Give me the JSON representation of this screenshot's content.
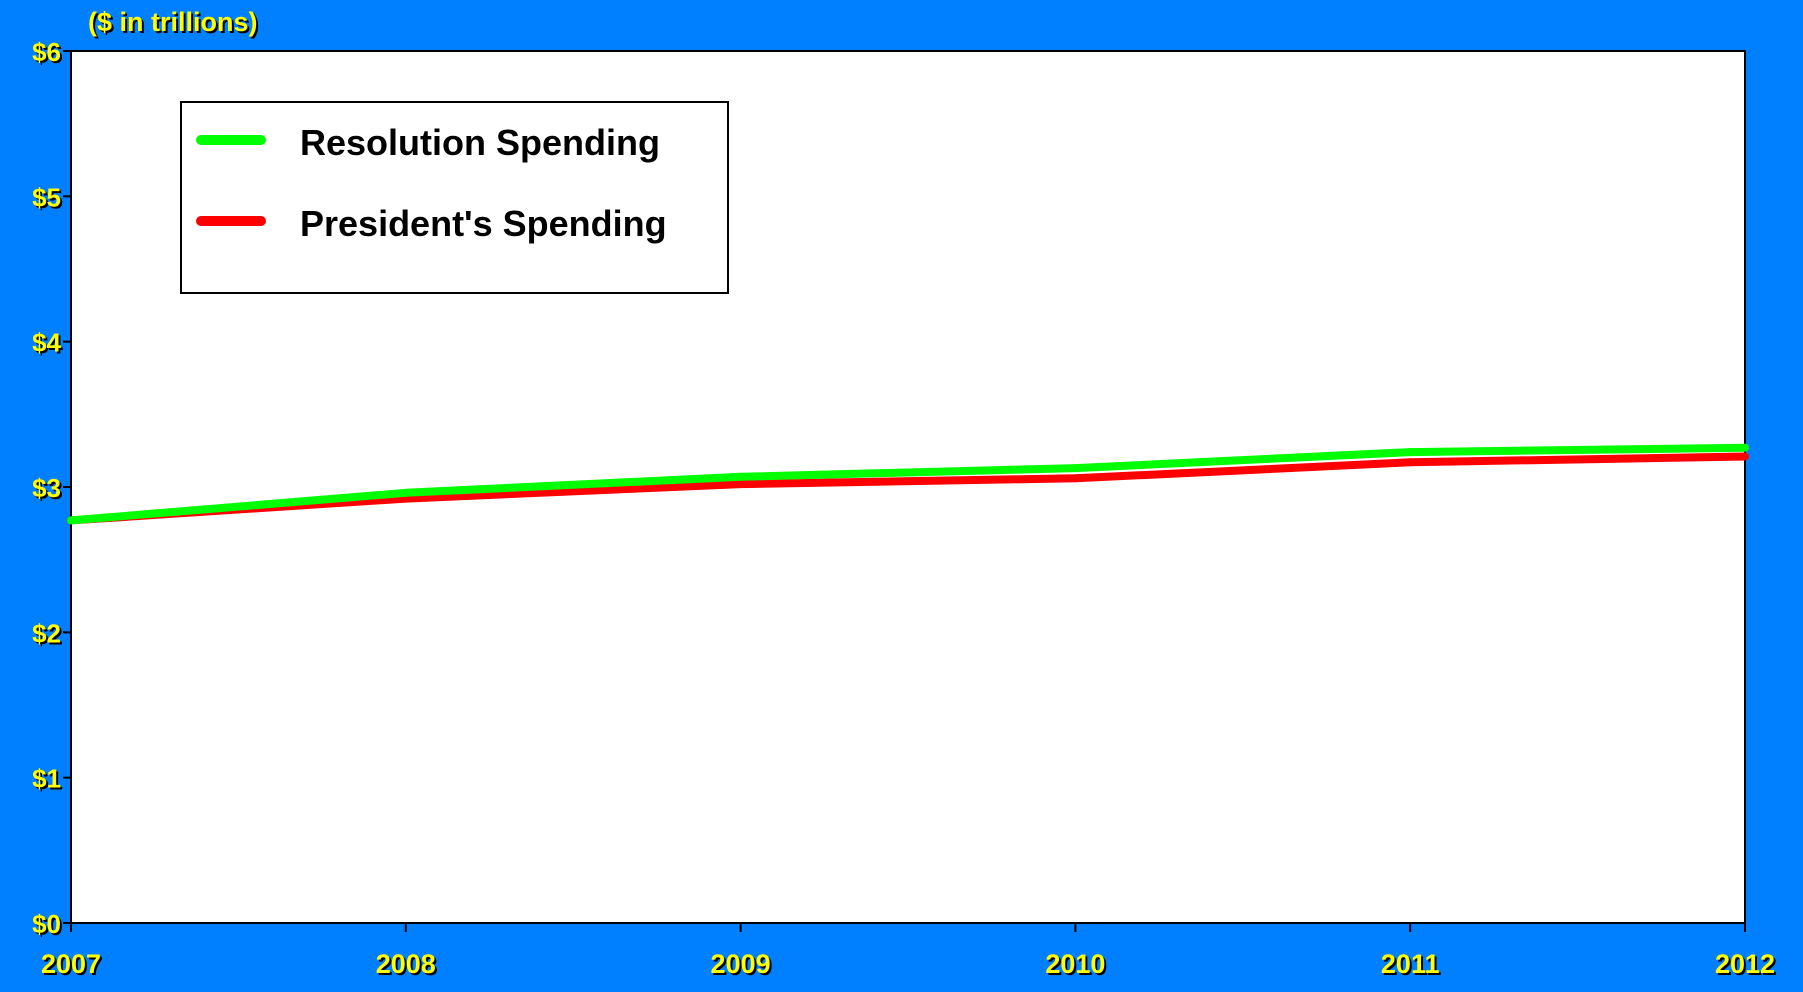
{
  "chart_data": {
    "type": "line",
    "title": "",
    "unit_label": "($ in trillions)",
    "xlabel": "",
    "ylabel": "",
    "categories": [
      "2007",
      "2008",
      "2009",
      "2010",
      "2011",
      "2012"
    ],
    "y_tick_values": [
      0,
      1,
      2,
      3,
      4,
      5,
      6
    ],
    "y_tick_labels": [
      "$0",
      "$1",
      "$2",
      "$3",
      "$4",
      "$5",
      "$6"
    ],
    "ylim": [
      0,
      6
    ],
    "grid": false,
    "legend_position": "top-left",
    "series": [
      {
        "name": "President's Spending",
        "color": "#ff0000",
        "values": [
          2.77,
          2.92,
          3.02,
          3.06,
          3.17,
          3.21
        ]
      },
      {
        "name": "Resolution Spending",
        "color": "#00ff00",
        "values": [
          2.77,
          2.96,
          3.07,
          3.13,
          3.24,
          3.27
        ]
      }
    ],
    "colors": {
      "background": "#0080ff",
      "plot_area": "#ffffff",
      "tick_label": "#ffff00"
    }
  }
}
